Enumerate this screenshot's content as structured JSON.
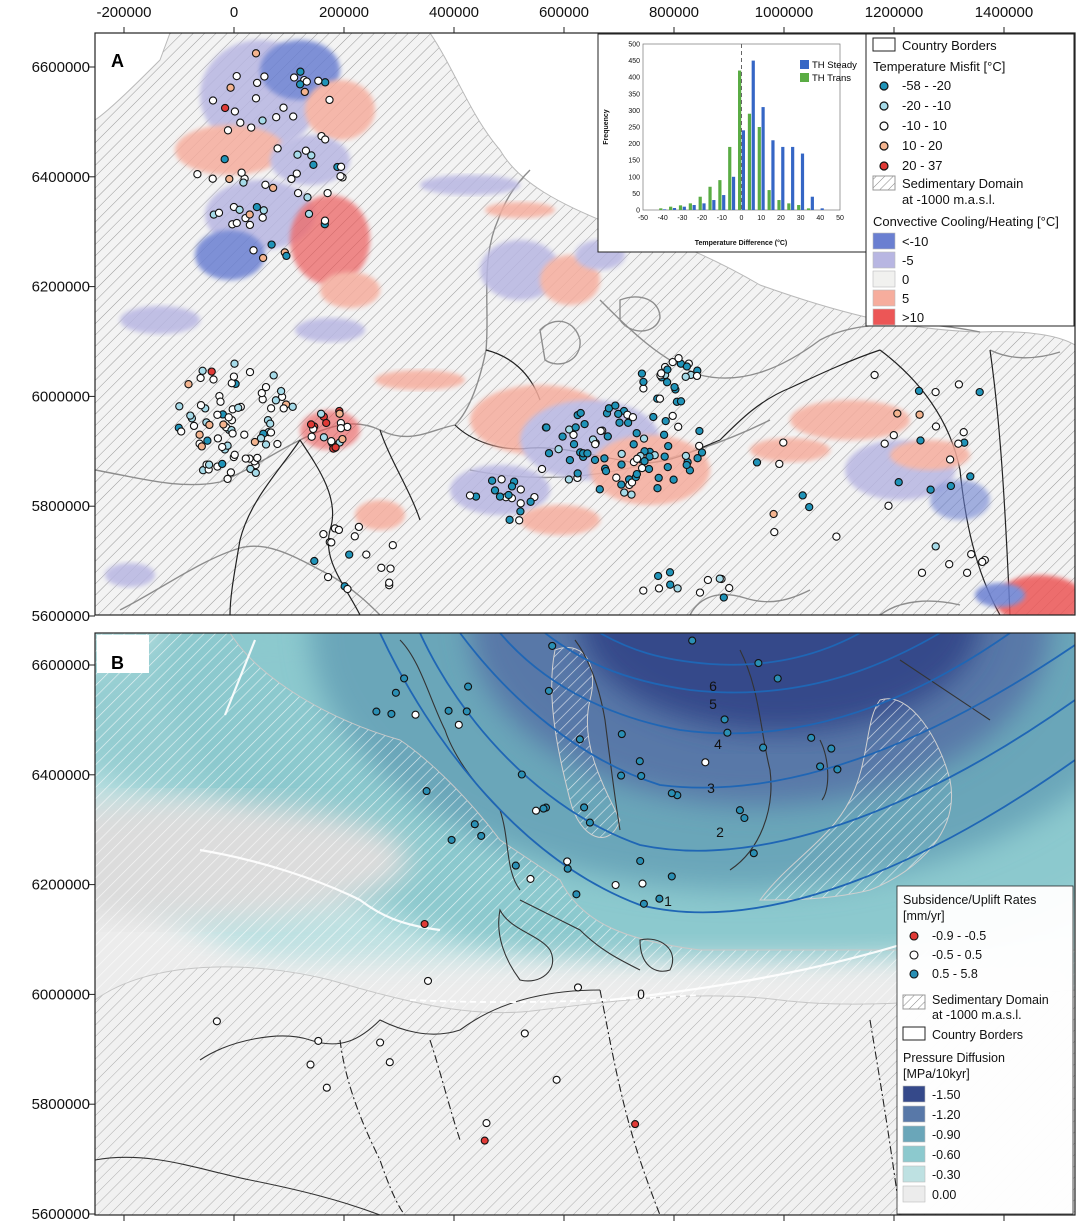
{
  "x_axis_ticks": [
    "-200000",
    "0",
    "200000",
    "400000",
    "600000",
    "800000",
    "1000000",
    "1200000",
    "1400000"
  ],
  "x_tick_values": [
    -200000,
    0,
    200000,
    400000,
    600000,
    800000,
    1000000,
    1200000,
    1400000
  ],
  "y_axis_ticks": [
    "6600000",
    "6400000",
    "6200000",
    "6000000",
    "5800000",
    "5600000"
  ],
  "y_tick_values": [
    6600000,
    6400000,
    6200000,
    6000000,
    5800000,
    5600000
  ],
  "panel_a": {
    "label": "A",
    "legend": {
      "country_borders": "Country Borders",
      "misfit_title": "Temperature Misfit [°C]",
      "misfit_classes": [
        {
          "label": "-58 - -20",
          "color": "#1f93b8"
        },
        {
          "label": "-20 - -10",
          "color": "#a6dbe9"
        },
        {
          "label": "-10 - 10",
          "color": "#ffffff"
        },
        {
          "label": "10 - 20",
          "color": "#f4b48f"
        },
        {
          "label": "20 - 37",
          "color": "#e03a36"
        }
      ],
      "sedimentary_line1": "Sedimentary Domain",
      "sedimentary_line2": "at -1000 m.a.s.l.",
      "convective_title": "Convective Cooling/Heating [°C]",
      "convective_classes": [
        {
          "label": "<-10",
          "color": "#6a7fd1"
        },
        {
          "label": "-5",
          "color": "#b8b6e2"
        },
        {
          "label": "0",
          "color": "#f1f1ef"
        },
        {
          "label": "5",
          "color": "#f6ad9d"
        },
        {
          "label": ">10",
          "color": "#ec5656"
        }
      ]
    }
  },
  "chart_data": [
    {
      "type": "bar",
      "title": "",
      "xlabel": "Temperature Difference (°C)",
      "ylabel": "Frequency",
      "xlim": [
        -50,
        50
      ],
      "ylim": [
        0,
        500
      ],
      "x_ticks": [
        -50,
        -40,
        -30,
        -20,
        -10,
        0,
        10,
        20,
        30,
        40,
        50
      ],
      "y_ticks": [
        0,
        50,
        100,
        150,
        200,
        250,
        300,
        350,
        400,
        450,
        500
      ],
      "reference_line_x": 0,
      "categories": [
        -45,
        -40,
        -35,
        -30,
        -25,
        -20,
        -15,
        -10,
        -5,
        0,
        5,
        10,
        15,
        20,
        25,
        30,
        35,
        40,
        45
      ],
      "series": [
        {
          "name": "TH Steady",
          "color": "#3566c5",
          "values": [
            0,
            2,
            6,
            10,
            15,
            20,
            30,
            45,
            100,
            240,
            450,
            310,
            210,
            190,
            190,
            170,
            40,
            5,
            0
          ]
        },
        {
          "name": "TH Trans",
          "color": "#5aac44",
          "values": [
            0,
            5,
            10,
            14,
            20,
            40,
            70,
            90,
            190,
            420,
            290,
            250,
            60,
            30,
            20,
            15,
            5,
            0,
            0
          ]
        }
      ]
    }
  ],
  "panel_b": {
    "label": "B",
    "contour_labels": [
      "6",
      "5",
      "4",
      "3",
      "2",
      "1",
      "0"
    ],
    "legend": {
      "rates_title_line1": "Subsidence/Uplift Rates",
      "rates_title_line2": "[mm/yr]",
      "rate_classes": [
        {
          "label": "-0.9 - -0.5",
          "color": "#e03a36"
        },
        {
          "label": "-0.5 - 0.5",
          "color": "#ffffff"
        },
        {
          "label": "0.5 - 5.8",
          "color": "#2a8fb4"
        }
      ],
      "sedimentary_line1": "Sedimentary Domain",
      "sedimentary_line2": "at -1000 m.a.s.l.",
      "country_borders": "Country Borders",
      "pressure_title_line1": "Pressure Diffusion",
      "pressure_title_line2": "[MPa/10kyr]",
      "pressure_classes": [
        {
          "label": "-1.50",
          "color": "#35498a"
        },
        {
          "label": "-1.20",
          "color": "#5878a8"
        },
        {
          "label": "-0.90",
          "color": "#6aa6b9"
        },
        {
          "label": "-0.60",
          "color": "#8cc9ce"
        },
        {
          "label": "-0.30",
          "color": "#bee1e2"
        },
        {
          "label": "0.00",
          "color": "#ececec"
        }
      ]
    }
  }
}
